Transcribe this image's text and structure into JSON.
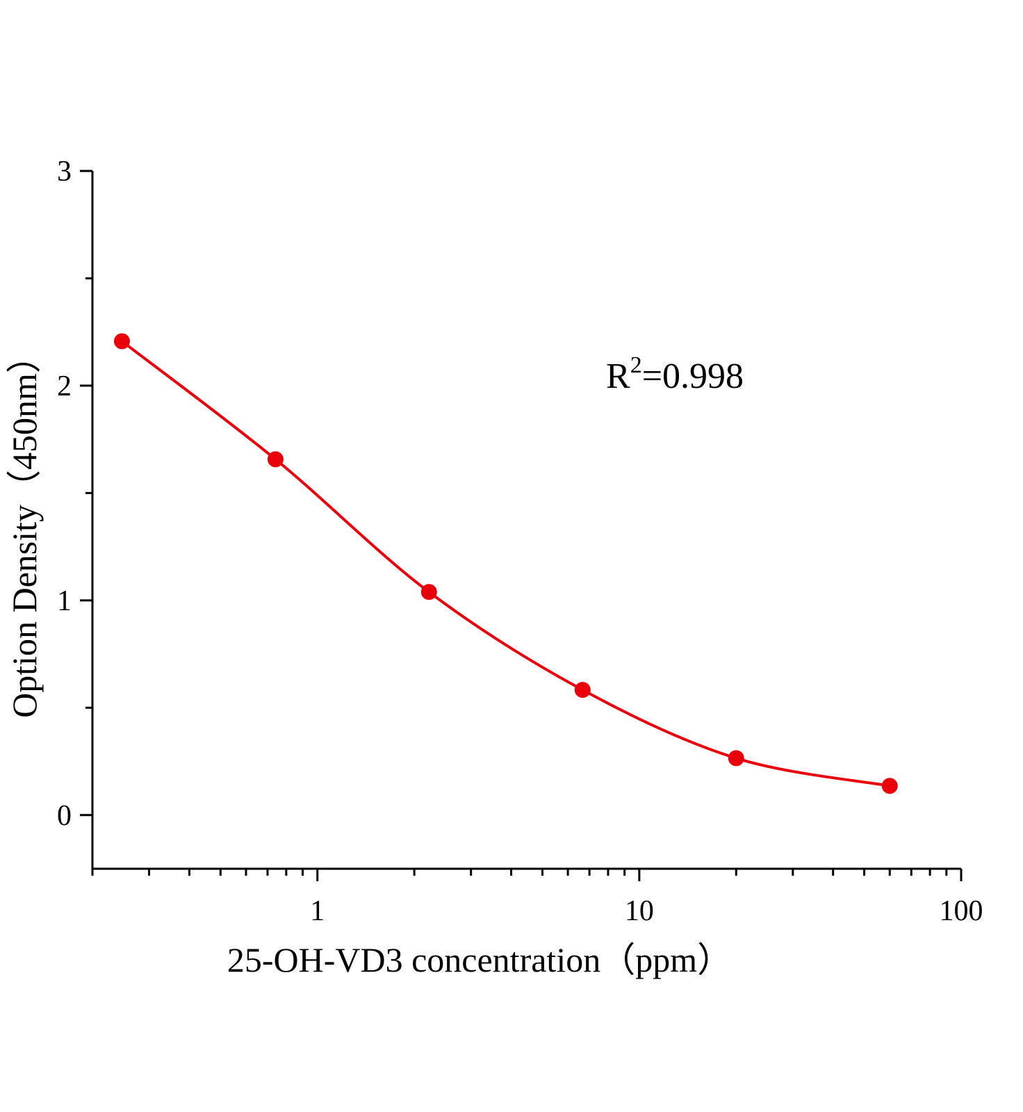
{
  "chart_data": {
    "type": "line",
    "title": "",
    "xlabel": "25-OH-VD3 concentration（ppm）",
    "ylabel": "Option Density（450nm）",
    "xscale": "log",
    "xlim": [
      0.2,
      100
    ],
    "ylim": [
      -0.25,
      3
    ],
    "xticks": [
      1,
      10,
      100
    ],
    "xtick_labels": [
      "1",
      "10",
      "100"
    ],
    "yticks": [
      0,
      1,
      2,
      3
    ],
    "ytick_labels": [
      "0",
      "1",
      "2",
      "3"
    ],
    "grid": false,
    "legend": "none",
    "annotation": {
      "base": "R",
      "sup": "2",
      "rest": "=0.998"
    },
    "series": [
      {
        "color": "#e8000b",
        "marker": "circle",
        "curve": "fitted",
        "x": [
          0.247,
          0.741,
          2.222,
          6.667,
          20,
          60
        ],
        "y": [
          2.207,
          1.657,
          1.039,
          0.583,
          0.265,
          0.136
        ]
      }
    ]
  }
}
